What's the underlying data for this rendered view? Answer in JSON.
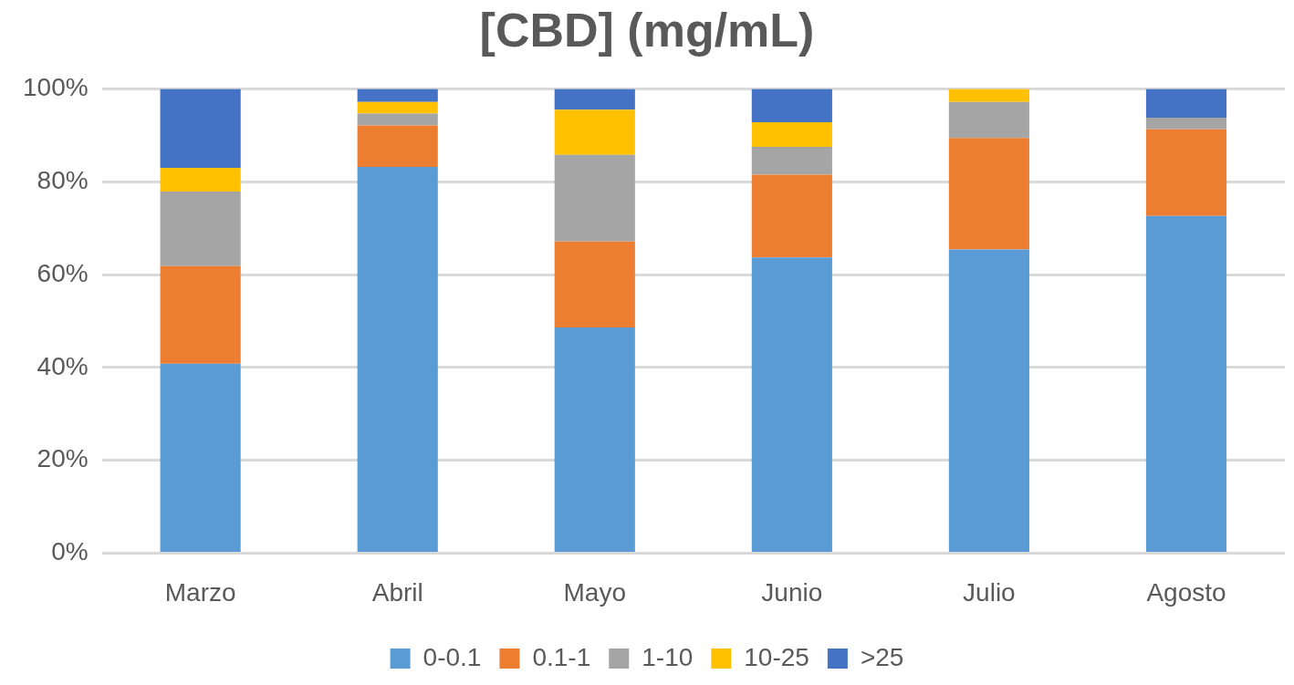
{
  "chart_data": {
    "type": "bar",
    "title": "[CBD] (mg/mL)",
    "stacked": true,
    "categories": [
      "Marzo",
      "Abril",
      "Mayo",
      "Junio",
      "Julio",
      "Agosto"
    ],
    "series": [
      {
        "name": "0-0.1",
        "color": "#5b9bd5",
        "values": [
          40.8,
          83.2,
          48.6,
          63.7,
          65.4,
          72.6
        ]
      },
      {
        "name": "0.1-1",
        "color": "#ed7d31",
        "values": [
          21.0,
          8.9,
          18.5,
          17.8,
          24.0,
          18.7
        ]
      },
      {
        "name": "1-10",
        "color": "#a5a5a5",
        "values": [
          16.1,
          2.6,
          18.7,
          6.0,
          7.8,
          2.5
        ]
      },
      {
        "name": "10-25",
        "color": "#ffc000",
        "values": [
          5.1,
          2.5,
          9.7,
          5.3,
          2.8,
          0
        ]
      },
      {
        "name": ">25",
        "color": "#4472c4",
        "values": [
          17.0,
          2.8,
          4.5,
          7.2,
          0,
          6.2
        ]
      }
    ],
    "ylim": [
      0,
      100
    ],
    "yticks": [
      {
        "value": 0,
        "label": "0%"
      },
      {
        "value": 20,
        "label": "20%"
      },
      {
        "value": 40,
        "label": "40%"
      },
      {
        "value": 60,
        "label": "60%"
      },
      {
        "value": 80,
        "label": "80%"
      },
      {
        "value": 100,
        "label": "100%"
      }
    ],
    "grid": "y",
    "legend": "bottom"
  }
}
